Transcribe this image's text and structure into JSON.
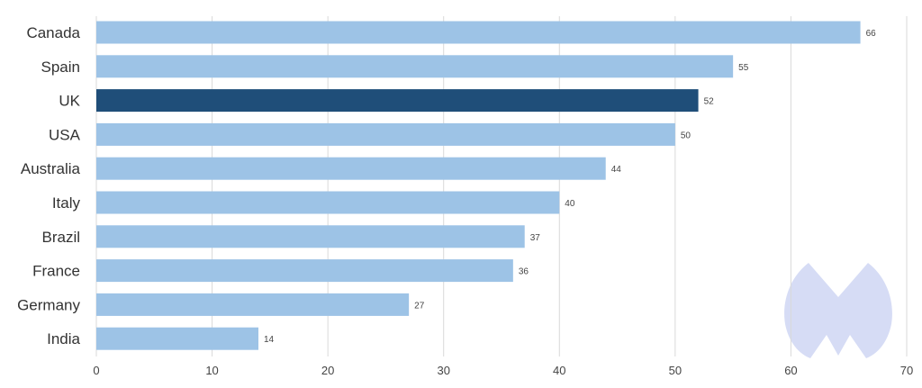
{
  "colors": {
    "bar": "#9dc3e6",
    "bar_highlight": "#1f4e79",
    "grid": "#d9d9d9",
    "watermark": "#d6dcf5"
  },
  "watermark": {
    "icon": "malwarebytes-logo"
  },
  "chart_data": {
    "type": "bar",
    "orientation": "horizontal",
    "title": "",
    "xlabel": "",
    "ylabel": "",
    "categories": [
      "Canada",
      "Spain",
      "UK",
      "USA",
      "Australia",
      "Italy",
      "Brazil",
      "France",
      "Germany",
      "India"
    ],
    "values": [
      66,
      55,
      52,
      50,
      44,
      40,
      37,
      36,
      27,
      14
    ],
    "value_labels": [
      "66",
      "55",
      "52",
      "50",
      "44",
      "40",
      "37",
      "36",
      "27",
      "14"
    ],
    "highlight": "UK",
    "xlim": [
      0,
      70
    ],
    "xticks": [
      0,
      10,
      20,
      30,
      40,
      50,
      60,
      70
    ],
    "xtick_labels": [
      "0",
      "10",
      "20",
      "30",
      "40",
      "50",
      "60",
      "70"
    ],
    "grid": true,
    "legend": "none"
  }
}
